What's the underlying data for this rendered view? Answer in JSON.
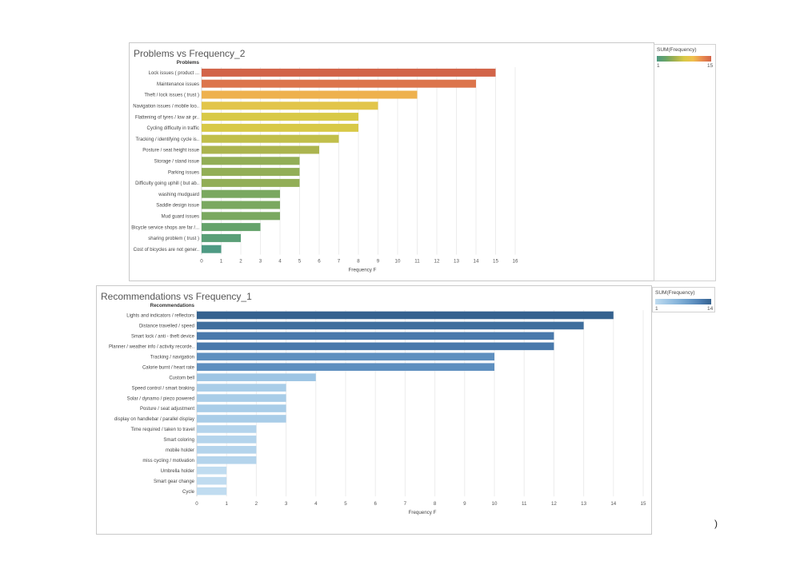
{
  "chart_data": [
    {
      "type": "bar",
      "orientation": "horizontal",
      "title": "Problems vs Frequency_2",
      "ylabel": "Problems",
      "xlabel": "Frequency F",
      "xlim": [
        0,
        16
      ],
      "xticks": [
        0,
        1,
        2,
        3,
        4,
        5,
        6,
        7,
        8,
        9,
        10,
        11,
        12,
        13,
        14,
        15,
        16
      ],
      "categories": [
        "Lock issues ( product ...",
        "Maintenance issues",
        "Theft / lock issues ( trust )",
        "Navigation issues / mobile loo..",
        "Flattening of tyres / low air pr..",
        "Cycling difficulty in traffic",
        "Tracking / identifying cycle is..",
        "Posture / seat height issue",
        "Storage / stand issue",
        "Parking issues",
        "Difficulty going uphill ( but ab..",
        "washing mudguard",
        "Saddle design issue",
        "Mud guard issues",
        "Bicycle service shops are far /...",
        "sharing problem ( trust )",
        "Cost of bicycles are not gener.."
      ],
      "values": [
        15,
        14,
        11,
        9,
        8,
        8,
        7,
        6,
        5,
        5,
        5,
        4,
        4,
        4,
        3,
        2,
        1
      ],
      "legend": {
        "title": "SUM(Frequency)",
        "min": "1",
        "max": "15"
      },
      "colors": [
        "#4e9a83",
        "#69a567",
        "#a3b150",
        "#d8c947",
        "#f0c04e",
        "#e98c4f",
        "#d26449"
      ]
    },
    {
      "type": "bar",
      "orientation": "horizontal",
      "title": "Recommendations vs Frequency_1",
      "ylabel": "Recommendations",
      "xlabel": "Frequency F",
      "xlim": [
        0,
        15
      ],
      "xticks": [
        0,
        1,
        2,
        3,
        4,
        5,
        6,
        7,
        8,
        9,
        10,
        11,
        12,
        13,
        14,
        15
      ],
      "categories": [
        "Lights and indicators / reflectors",
        "Distance travelled / speed",
        "Smart lock / anti - theft device",
        "Planner / weather info / activity recorde..",
        "Tracking / navigation",
        "Calorie burnt / heart rate",
        "Custom bell",
        "Speed control / smart braking",
        "Solar / dynamo / piezo powered",
        "Posture / seat adjustment",
        "display on handlebar / parallel display",
        "Time required / taken to travel",
        "Smart coloring",
        "mobile holder",
        "miss cycling / motivation",
        "Umbrella holder",
        "Smart gear change",
        "Cycle"
      ],
      "values": [
        14,
        13,
        12,
        12,
        10,
        10,
        4,
        3,
        3,
        3,
        3,
        2,
        2,
        2,
        2,
        1,
        1,
        1
      ],
      "legend": {
        "title": "SUM(Frequency)",
        "min": "1",
        "max": "14"
      },
      "colors": [
        "#c0dcf0",
        "#a2c8e6",
        "#86b4da",
        "#6a9cc9",
        "#4f80b3",
        "#35628f"
      ]
    }
  ],
  "footer": {
    "paren": ")"
  }
}
